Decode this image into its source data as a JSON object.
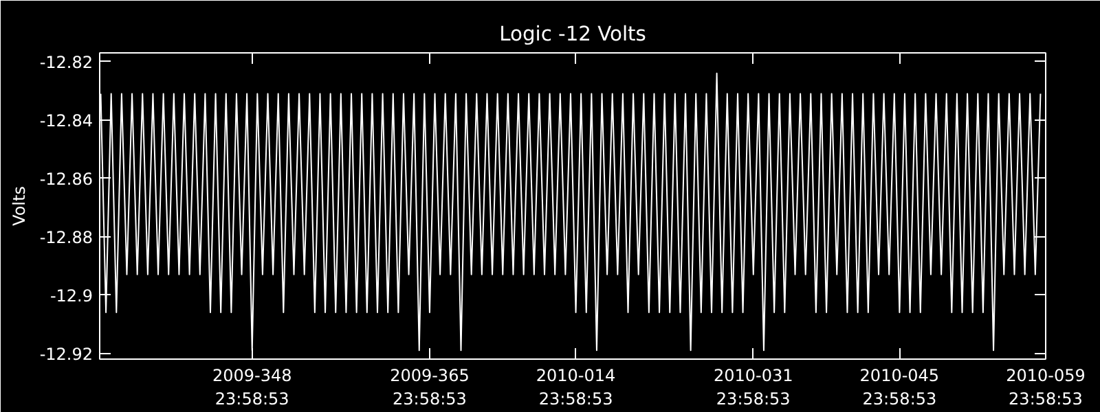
{
  "chart_data": {
    "type": "line",
    "title": "Logic -12 Volts",
    "ylabel": "Volts",
    "xlim": [
      "2009-11-30T09:36",
      "2010-02-28T23:58"
    ],
    "ylim": [
      -12.922,
      -12.817
    ],
    "xticks": [
      {
        "value": "2009-12-14T23:58",
        "label": "2009-348\n23:58:53"
      },
      {
        "value": "2009-12-31T23:58",
        "label": "2009-365\n23:58:53"
      },
      {
        "value": "2010-01-14T23:58",
        "label": "2010-014\n23:58:53"
      },
      {
        "value": "2010-01-31T23:58",
        "label": "2010-031\n23:58:53"
      },
      {
        "value": "2010-02-14T23:58",
        "label": "2010-045\n23:58:53"
      },
      {
        "value": "2010-02-28T23:58",
        "label": "2010-059\n23:58:53"
      }
    ],
    "yticks": [
      -12.82,
      -12.84,
      -12.86,
      -12.88,
      -12.9,
      -12.92
    ],
    "grid": false,
    "marker": "none",
    "line_style": "solid",
    "x": [
      "2009-11-30T12:00",
      "2009-12-01T00:00",
      "2009-12-01T12:00",
      "2009-12-02T00:00",
      "2009-12-02T12:00",
      "2009-12-03T00:00",
      "2009-12-03T12:00",
      "2009-12-04T00:00",
      "2009-12-04T12:00",
      "2009-12-05T00:00",
      "2009-12-05T12:00",
      "2009-12-06T00:00",
      "2009-12-06T12:00",
      "2009-12-07T00:00",
      "2009-12-07T12:00",
      "2009-12-08T00:00",
      "2009-12-08T12:00",
      "2009-12-09T00:00",
      "2009-12-09T12:00",
      "2009-12-10T00:00",
      "2009-12-10T12:00",
      "2009-12-11T00:00",
      "2009-12-11T12:00",
      "2009-12-12T00:00",
      "2009-12-12T12:00",
      "2009-12-13T00:00",
      "2009-12-13T12:00",
      "2009-12-14T00:00",
      "2009-12-14T12:00",
      "2009-12-15T00:00",
      "2009-12-15T12:00",
      "2009-12-16T00:00",
      "2009-12-16T12:00",
      "2009-12-17T00:00",
      "2009-12-17T12:00",
      "2009-12-18T00:00",
      "2009-12-18T12:00",
      "2009-12-19T00:00",
      "2009-12-19T12:00",
      "2009-12-20T00:00",
      "2009-12-20T12:00",
      "2009-12-21T00:00",
      "2009-12-21T12:00",
      "2009-12-22T00:00",
      "2009-12-22T12:00",
      "2009-12-23T00:00",
      "2009-12-23T12:00",
      "2009-12-24T00:00",
      "2009-12-24T12:00",
      "2009-12-25T00:00",
      "2009-12-25T12:00",
      "2009-12-26T00:00",
      "2009-12-26T12:00",
      "2009-12-27T00:00",
      "2009-12-27T12:00",
      "2009-12-28T00:00",
      "2009-12-28T12:00",
      "2009-12-29T00:00",
      "2009-12-29T12:00",
      "2009-12-30T00:00",
      "2009-12-30T12:00",
      "2009-12-31T00:00",
      "2009-12-31T12:00",
      "2010-01-01T00:00",
      "2010-01-01T12:00",
      "2010-01-02T00:00",
      "2010-01-02T12:00",
      "2010-01-03T00:00",
      "2010-01-03T12:00",
      "2010-01-04T00:00",
      "2010-01-04T12:00",
      "2010-01-05T00:00",
      "2010-01-05T12:00",
      "2010-01-06T00:00",
      "2010-01-06T12:00",
      "2010-01-07T00:00",
      "2010-01-07T12:00",
      "2010-01-08T00:00",
      "2010-01-08T12:00",
      "2010-01-09T00:00",
      "2010-01-09T12:00",
      "2010-01-10T00:00",
      "2010-01-10T12:00",
      "2010-01-11T00:00",
      "2010-01-11T12:00",
      "2010-01-12T00:00",
      "2010-01-12T12:00",
      "2010-01-13T00:00",
      "2010-01-13T12:00",
      "2010-01-14T00:00",
      "2010-01-14T12:00",
      "2010-01-15T00:00",
      "2010-01-15T12:00",
      "2010-01-16T00:00",
      "2010-01-16T12:00",
      "2010-01-17T00:00",
      "2010-01-17T12:00",
      "2010-01-18T00:00",
      "2010-01-18T12:00",
      "2010-01-19T00:00",
      "2010-01-19T12:00",
      "2010-01-20T00:00",
      "2010-01-20T12:00",
      "2010-01-21T00:00",
      "2010-01-21T12:00",
      "2010-01-22T00:00",
      "2010-01-22T12:00",
      "2010-01-23T00:00",
      "2010-01-23T12:00",
      "2010-01-24T00:00",
      "2010-01-24T12:00",
      "2010-01-25T00:00",
      "2010-01-25T12:00",
      "2010-01-26T00:00",
      "2010-01-26T12:00",
      "2010-01-27T00:00",
      "2010-01-27T12:00",
      "2010-01-28T00:00",
      "2010-01-28T12:00",
      "2010-01-29T00:00",
      "2010-01-29T12:00",
      "2010-01-30T00:00",
      "2010-01-30T12:00",
      "2010-01-31T00:00",
      "2010-01-31T12:00",
      "2010-02-01T00:00",
      "2010-02-01T12:00",
      "2010-02-02T00:00",
      "2010-02-02T12:00",
      "2010-02-03T00:00",
      "2010-02-03T12:00",
      "2010-02-04T00:00",
      "2010-02-04T12:00",
      "2010-02-05T00:00",
      "2010-02-05T12:00",
      "2010-02-06T00:00",
      "2010-02-06T12:00",
      "2010-02-07T00:00",
      "2010-02-07T12:00",
      "2010-02-08T00:00",
      "2010-02-08T12:00",
      "2010-02-09T00:00",
      "2010-02-09T12:00",
      "2010-02-10T00:00",
      "2010-02-10T12:00",
      "2010-02-11T00:00",
      "2010-02-11T12:00",
      "2010-02-12T00:00",
      "2010-02-12T12:00",
      "2010-02-13T00:00",
      "2010-02-13T12:00",
      "2010-02-14T00:00",
      "2010-02-14T12:00",
      "2010-02-15T00:00",
      "2010-02-15T12:00",
      "2010-02-16T00:00",
      "2010-02-16T12:00",
      "2010-02-17T00:00",
      "2010-02-17T12:00",
      "2010-02-18T00:00",
      "2010-02-18T12:00",
      "2010-02-19T00:00",
      "2010-02-19T12:00",
      "2010-02-20T00:00",
      "2010-02-20T12:00",
      "2010-02-21T00:00",
      "2010-02-21T12:00",
      "2010-02-22T00:00",
      "2010-02-22T12:00",
      "2010-02-23T00:00",
      "2010-02-23T12:00",
      "2010-02-24T00:00",
      "2010-02-24T12:00",
      "2010-02-25T00:00",
      "2010-02-25T12:00",
      "2010-02-26T00:00",
      "2010-02-26T12:00",
      "2010-02-27T00:00",
      "2010-02-27T12:00",
      "2010-02-28T00:00",
      "2010-02-28T12:00"
    ],
    "series": [
      {
        "color": "#ffffff",
        "values": [
          -12.831,
          -12.906,
          -12.831,
          -12.906,
          -12.831,
          -12.893,
          -12.831,
          -12.893,
          -12.831,
          -12.893,
          -12.831,
          -12.893,
          -12.831,
          -12.893,
          -12.831,
          -12.893,
          -12.831,
          -12.893,
          -12.831,
          -12.893,
          -12.831,
          -12.906,
          -12.831,
          -12.906,
          -12.831,
          -12.906,
          -12.831,
          -12.893,
          -12.831,
          -12.919,
          -12.831,
          -12.893,
          -12.831,
          -12.893,
          -12.831,
          -12.906,
          -12.831,
          -12.893,
          -12.831,
          -12.893,
          -12.831,
          -12.906,
          -12.831,
          -12.906,
          -12.831,
          -12.906,
          -12.831,
          -12.906,
          -12.831,
          -12.906,
          -12.831,
          -12.906,
          -12.831,
          -12.906,
          -12.831,
          -12.906,
          -12.831,
          -12.906,
          -12.831,
          -12.893,
          -12.831,
          -12.919,
          -12.831,
          -12.906,
          -12.831,
          -12.893,
          -12.831,
          -12.893,
          -12.831,
          -12.919,
          -12.831,
          -12.893,
          -12.831,
          -12.893,
          -12.831,
          -12.893,
          -12.831,
          -12.893,
          -12.831,
          -12.893,
          -12.831,
          -12.893,
          -12.831,
          -12.893,
          -12.831,
          -12.893,
          -12.831,
          -12.893,
          -12.831,
          -12.893,
          -12.831,
          -12.906,
          -12.831,
          -12.906,
          -12.831,
          -12.919,
          -12.831,
          -12.893,
          -12.831,
          -12.893,
          -12.831,
          -12.906,
          -12.831,
          -12.893,
          -12.831,
          -12.906,
          -12.831,
          -12.906,
          -12.831,
          -12.906,
          -12.831,
          -12.906,
          -12.831,
          -12.919,
          -12.831,
          -12.906,
          -12.831,
          -12.906,
          -12.824,
          -12.906,
          -12.831,
          -12.906,
          -12.831,
          -12.906,
          -12.831,
          -12.893,
          -12.831,
          -12.919,
          -12.831,
          -12.906,
          -12.831,
          -12.906,
          -12.831,
          -12.893,
          -12.831,
          -12.893,
          -12.831,
          -12.906,
          -12.831,
          -12.906,
          -12.831,
          -12.893,
          -12.831,
          -12.906,
          -12.831,
          -12.906,
          -12.831,
          -12.906,
          -12.831,
          -12.893,
          -12.831,
          -12.893,
          -12.831,
          -12.906,
          -12.831,
          -12.906,
          -12.831,
          -12.906,
          -12.831,
          -12.893,
          -12.831,
          -12.893,
          -12.831,
          -12.906,
          -12.831,
          -12.906,
          -12.831,
          -12.906,
          -12.831,
          -12.906,
          -12.831,
          -12.919,
          -12.831,
          -12.893,
          -12.831,
          -12.893,
          -12.831,
          -12.893,
          -12.831,
          -12.893,
          -12.831
        ]
      }
    ]
  }
}
